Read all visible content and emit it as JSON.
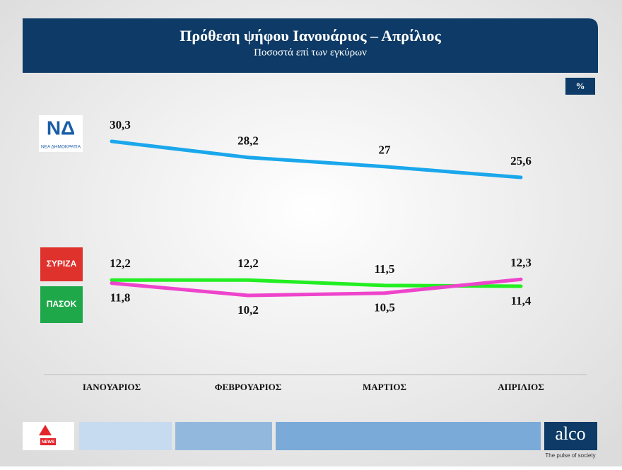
{
  "chart_data": {
    "type": "line",
    "title": "Πρόθεση ψήφου Ιανουάριος – Απρίλιος",
    "subtitle": "Ποσοστά επί των εγκύρων",
    "unit": "%",
    "categories": [
      "ΙΑΝΟΥΑΡΙΟΣ",
      "ΦΕΒΡΟΥΑΡΙΟΣ",
      "ΜΑΡΤΙΟΣ",
      "ΑΠΡΙΛΙΟΣ"
    ],
    "series": [
      {
        "name": "ΝΕΑ ΔΗΜΟΚΡΑΤΙΑ",
        "abbr": "ΝΔ",
        "color": "#1aa7ec",
        "values": [
          30.3,
          28.2,
          27,
          25.6
        ],
        "value_labels": [
          "30,3",
          "28,2",
          "27",
          "25,6"
        ]
      },
      {
        "name": "ΠΑΣΟΚ",
        "color": "#22ee22",
        "values": [
          12.2,
          12.2,
          11.5,
          11.4
        ],
        "value_labels": [
          "12,2",
          "12,2",
          "11,5",
          "11,4"
        ]
      },
      {
        "name": "ΣΥΡΙΖΑ",
        "color": "#ee44cc",
        "values": [
          11.8,
          10.2,
          10.5,
          12.3
        ],
        "value_labels": [
          "11,8",
          "10,2",
          "10,5",
          "12,3"
        ]
      }
    ]
  },
  "footer": {
    "news_logo": "NEWS",
    "brand": "alco",
    "tagline": "The pulse of society"
  }
}
